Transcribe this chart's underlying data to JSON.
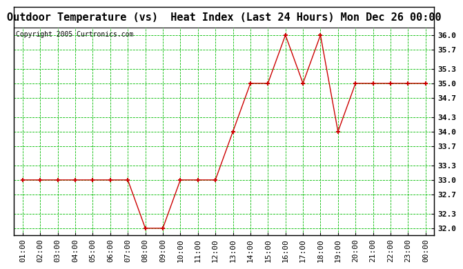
{
  "title": "Outdoor Temperature (vs)  Heat Index (Last 24 Hours) Mon Dec 26 00:00",
  "copyright": "Copyright 2005 Curtronics.com",
  "x_labels": [
    "01:00",
    "02:00",
    "03:00",
    "04:00",
    "05:00",
    "06:00",
    "07:00",
    "08:00",
    "09:00",
    "10:00",
    "11:00",
    "12:00",
    "13:00",
    "14:00",
    "15:00",
    "16:00",
    "17:00",
    "18:00",
    "19:00",
    "20:00",
    "21:00",
    "22:00",
    "23:00",
    "00:00"
  ],
  "y_values": [
    33.0,
    33.0,
    33.0,
    33.0,
    33.0,
    33.0,
    33.0,
    32.0,
    32.0,
    33.0,
    33.0,
    33.0,
    34.0,
    35.0,
    35.0,
    36.0,
    35.0,
    36.0,
    34.0,
    35.0,
    35.0,
    35.0,
    35.0,
    35.0
  ],
  "y_ticks": [
    32.0,
    32.3,
    32.7,
    33.0,
    33.3,
    33.7,
    34.0,
    34.3,
    34.7,
    35.0,
    35.3,
    35.7,
    36.0
  ],
  "y_tick_labels": [
    "32.0",
    "32.3",
    "32.7",
    "33.0",
    "33.3",
    "33.7",
    "34.0",
    "34.3",
    "34.7",
    "35.0",
    "35.3",
    "35.7",
    "36.0"
  ],
  "ylim": [
    31.85,
    36.15
  ],
  "line_color": "#cc0000",
  "marker_color": "#cc0000",
  "bg_color": "#ffffff",
  "plot_bg_color": "#ffffff",
  "grid_color": "#00bb00",
  "title_fontsize": 11,
  "copyright_fontsize": 7,
  "tick_fontsize": 8,
  "outer_border_color": "#000000"
}
